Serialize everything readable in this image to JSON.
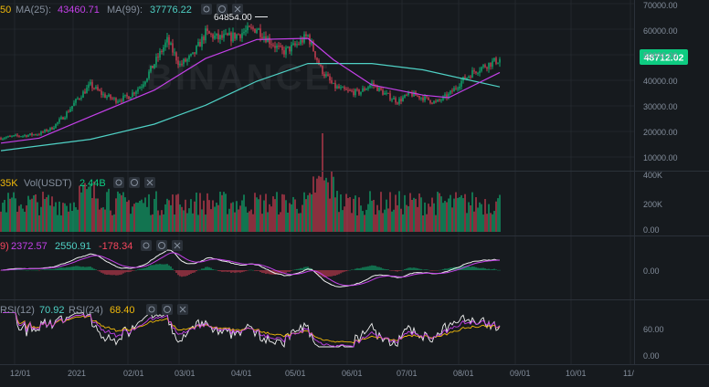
{
  "colors": {
    "background": "#161a1e",
    "grid": "#2b2f36",
    "divider": "#2b3139",
    "up": "#0ecb81",
    "down": "#f6465d",
    "ma25": "#c440e8",
    "ma99": "#4fd1c5",
    "text": "#848e9c",
    "price_badge": "#0ecb81",
    "macd_dif": "#f0f0f0",
    "macd_dea": "#c440e8",
    "rsi12": "#c440e8",
    "rsi24": "#f0b90b",
    "rsi6": "#f0f0f0"
  },
  "watermark": "BINANCE",
  "main": {
    "legend": [
      {
        "label": "50",
        "value": "",
        "color": "#f0b90b"
      },
      {
        "label": "MA(25):",
        "value": "43460.71",
        "color": "#c440e8"
      },
      {
        "label": "MA(99):",
        "value": "37776.22",
        "color": "#4fd1c5"
      }
    ],
    "high_marker": "64854.00",
    "current_price": "48712.02",
    "y_ticks": [
      "70000.00",
      "60000.00",
      "50000.00",
      "40000.00",
      "30000.00",
      "20000.00",
      "10000.00"
    ]
  },
  "volume": {
    "legend": [
      {
        "label": "35K",
        "value": "",
        "color": "#f0b90b"
      },
      {
        "label": "Vol(USDT)",
        "value": "2.44B",
        "color": "#0ecb81"
      }
    ],
    "y_ticks": [
      "400K",
      "200K",
      "0.00"
    ]
  },
  "macd": {
    "legend": [
      {
        "label": "9)",
        "value": "",
        "color": "#f6465d"
      },
      {
        "label": "2372.57",
        "value": "",
        "color": "#c440e8"
      },
      {
        "label": "2550.91",
        "value": "",
        "color": "#4fd1c5"
      },
      {
        "label": "-178.34",
        "value": "",
        "color": "#f6465d"
      }
    ],
    "y_ticks": [
      "0.00"
    ]
  },
  "rsi": {
    "legend": [
      {
        "label": "RSI(12)",
        "value": "70.92",
        "color": "#4fd1c5"
      },
      {
        "label": "RSI(24)",
        "value": "68.40",
        "color": "#f0b90b"
      }
    ],
    "y_ticks": [
      "60.00",
      "0.00"
    ]
  },
  "x_ticks": [
    "12/01",
    "2021",
    "02/01",
    "03/01",
    "04/01",
    "05/01",
    "06/01",
    "07/01",
    "08/01",
    "09/01",
    "10/01",
    "11/"
  ],
  "chart_data": {
    "type": "candlestick",
    "interval": "daily",
    "candles": {
      "x": [
        "11/21",
        "11/28",
        "12/05",
        "12/12",
        "12/19",
        "12/26",
        "01/02",
        "01/09",
        "01/16",
        "01/23",
        "01/30",
        "02/06",
        "02/13",
        "02/20",
        "02/27",
        "03/06",
        "03/13",
        "03/20",
        "03/27",
        "04/03",
        "04/10",
        "04/17",
        "04/24",
        "05/01",
        "05/08",
        "05/15",
        "05/22",
        "05/29",
        "06/05",
        "06/12",
        "06/19",
        "06/26",
        "07/03",
        "07/10",
        "07/17",
        "07/24",
        "07/31",
        "08/07",
        "08/14",
        "08/19"
      ],
      "close": [
        17500,
        18200,
        18600,
        19200,
        21500,
        26500,
        33000,
        38500,
        34500,
        32500,
        34000,
        38500,
        47000,
        56000,
        46500,
        50000,
        59000,
        57000,
        57500,
        59500,
        61000,
        56000,
        51500,
        54000,
        58000,
        45000,
        38000,
        36000,
        35500,
        39000,
        35000,
        32000,
        35000,
        33500,
        31500,
        34500,
        40000,
        44000,
        46500,
        48712
      ]
    },
    "ma25": {
      "x": [
        "11/21",
        "12/12",
        "01/09",
        "02/13",
        "03/13",
        "04/10",
        "05/08",
        "05/22",
        "06/12",
        "07/10",
        "07/24",
        "08/19"
      ],
      "y": [
        15500,
        17500,
        26000,
        36500,
        49000,
        56500,
        57000,
        48500,
        38500,
        34500,
        33500,
        43460.71
      ]
    },
    "ma99": {
      "x": [
        "11/21",
        "01/09",
        "02/13",
        "03/13",
        "04/10",
        "05/08",
        "06/12",
        "07/10",
        "08/19"
      ],
      "y": [
        12500,
        17000,
        23000,
        30500,
        40000,
        47000,
        47000,
        44500,
        37776.22
      ]
    },
    "volume_ylim": [
      0,
      400000
    ],
    "rsi_ylim": [
      0,
      100
    ]
  }
}
